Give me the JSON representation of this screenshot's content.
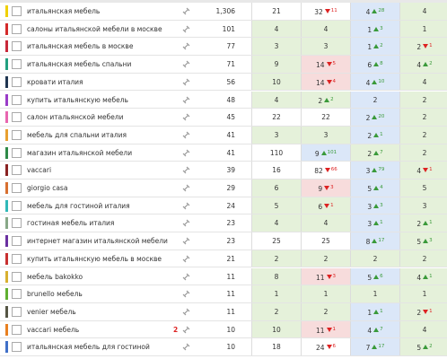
{
  "table": {
    "rows": [
      {
        "color": "#f0d000",
        "keyword": "итальянская мебель",
        "freq": "1,306",
        "cells": [
          {
            "v": 21,
            "tone": "w"
          },
          {
            "v": 32,
            "tone": "w",
            "ch": 11,
            "dir": "down"
          },
          {
            "v": 4,
            "tone": "b",
            "ch": 28,
            "dir": "up"
          },
          {
            "v": 4,
            "tone": "g"
          }
        ]
      },
      {
        "color": "#d42a2a",
        "keyword": "салоны итальянской мебели в москве",
        "freq": 101,
        "cells": [
          {
            "v": 4,
            "tone": "g"
          },
          {
            "v": 4,
            "tone": "g"
          },
          {
            "v": 1,
            "tone": "b",
            "ch": 3,
            "dir": "up"
          },
          {
            "v": 1,
            "tone": "g"
          }
        ]
      },
      {
        "color": "#c8283a",
        "keyword": "итальянская мебель в москве",
        "freq": 77,
        "cells": [
          {
            "v": 3,
            "tone": "g"
          },
          {
            "v": 3,
            "tone": "g"
          },
          {
            "v": 1,
            "tone": "b",
            "ch": 2,
            "dir": "up"
          },
          {
            "v": 2,
            "tone": "g",
            "ch": 1,
            "dir": "down"
          }
        ]
      },
      {
        "color": "#22a080",
        "keyword": "итальянская мебель спальни",
        "freq": 71,
        "cells": [
          {
            "v": 9,
            "tone": "g"
          },
          {
            "v": 14,
            "tone": "r",
            "ch": 5,
            "dir": "down"
          },
          {
            "v": 6,
            "tone": "b",
            "ch": 8,
            "dir": "up"
          },
          {
            "v": 4,
            "tone": "g",
            "ch": 2,
            "dir": "up"
          }
        ]
      },
      {
        "color": "#1f3550",
        "keyword": "кровати италия",
        "freq": 56,
        "cells": [
          {
            "v": 10,
            "tone": "g"
          },
          {
            "v": 14,
            "tone": "r",
            "ch": 4,
            "dir": "down"
          },
          {
            "v": 4,
            "tone": "b",
            "ch": 10,
            "dir": "up"
          },
          {
            "v": 4,
            "tone": "g"
          }
        ]
      },
      {
        "color": "#9a3cc8",
        "keyword": "купить итальянскую мебель",
        "freq": 48,
        "cells": [
          {
            "v": 4,
            "tone": "g"
          },
          {
            "v": 2,
            "tone": "g",
            "ch": 2,
            "dir": "up"
          },
          {
            "v": 2,
            "tone": "b"
          },
          {
            "v": 2,
            "tone": "g"
          }
        ]
      },
      {
        "color": "#e866b0",
        "keyword": "салон итальянской мебели",
        "freq": 45,
        "cells": [
          {
            "v": 22,
            "tone": "w"
          },
          {
            "v": 22,
            "tone": "w"
          },
          {
            "v": 2,
            "tone": "b",
            "ch": 20,
            "dir": "up"
          },
          {
            "v": 2,
            "tone": "g"
          }
        ]
      },
      {
        "color": "#e8a030",
        "keyword": "мебель для спальни италия",
        "freq": 41,
        "cells": [
          {
            "v": 3,
            "tone": "g"
          },
          {
            "v": 3,
            "tone": "g"
          },
          {
            "v": 2,
            "tone": "b",
            "ch": 1,
            "dir": "up"
          },
          {
            "v": 2,
            "tone": "g"
          }
        ]
      },
      {
        "color": "#2e8a48",
        "keyword": "магазин итальянской мебели",
        "freq": 41,
        "cells": [
          {
            "v": 110,
            "tone": "w"
          },
          {
            "v": 9,
            "tone": "b",
            "ch": 101,
            "dir": "up"
          },
          {
            "v": 2,
            "tone": "g",
            "ch": 7,
            "dir": "up"
          },
          {
            "v": 2,
            "tone": "g"
          }
        ]
      },
      {
        "color": "#8a2222",
        "keyword": "vaccari",
        "freq": 39,
        "cells": [
          {
            "v": 16,
            "tone": "w"
          },
          {
            "v": 82,
            "tone": "w",
            "ch": 66,
            "dir": "down"
          },
          {
            "v": 3,
            "tone": "b",
            "ch": 79,
            "dir": "up"
          },
          {
            "v": 4,
            "tone": "g",
            "ch": 1,
            "dir": "down"
          }
        ]
      },
      {
        "color": "#d87030",
        "keyword": "giorgio casa",
        "freq": 29,
        "cells": [
          {
            "v": 6,
            "tone": "g"
          },
          {
            "v": 9,
            "tone": "r",
            "ch": 3,
            "dir": "down"
          },
          {
            "v": 5,
            "tone": "b",
            "ch": 4,
            "dir": "up"
          },
          {
            "v": 5,
            "tone": "g"
          }
        ]
      },
      {
        "color": "#30b8b8",
        "keyword": "мебель для гостиной италия",
        "freq": 24,
        "cells": [
          {
            "v": 5,
            "tone": "g"
          },
          {
            "v": 6,
            "tone": "g",
            "ch": 1,
            "dir": "down"
          },
          {
            "v": 3,
            "tone": "b",
            "ch": 3,
            "dir": "up"
          },
          {
            "v": 3,
            "tone": "g"
          }
        ]
      },
      {
        "color": "#88a888",
        "keyword": "гостиная мебель италия",
        "freq": 23,
        "cells": [
          {
            "v": 4,
            "tone": "g"
          },
          {
            "v": 4,
            "tone": "g"
          },
          {
            "v": 3,
            "tone": "b",
            "ch": 1,
            "dir": "up"
          },
          {
            "v": 2,
            "tone": "g",
            "ch": 1,
            "dir": "up"
          }
        ]
      },
      {
        "color": "#6a30a0",
        "keyword": "интернет магазин итальянской мебели",
        "freq": 23,
        "cells": [
          {
            "v": 25,
            "tone": "w"
          },
          {
            "v": 25,
            "tone": "w"
          },
          {
            "v": 8,
            "tone": "b",
            "ch": 17,
            "dir": "up"
          },
          {
            "v": 5,
            "tone": "g",
            "ch": 3,
            "dir": "up"
          }
        ]
      },
      {
        "color": "#c83030",
        "keyword": "купить итальянскую мебель в москве",
        "freq": 21,
        "cells": [
          {
            "v": 2,
            "tone": "g"
          },
          {
            "v": 2,
            "tone": "g"
          },
          {
            "v": 2,
            "tone": "g"
          },
          {
            "v": 2,
            "tone": "g"
          }
        ]
      },
      {
        "color": "#d8b030",
        "keyword": "мебель bakokko",
        "freq": 11,
        "cells": [
          {
            "v": 8,
            "tone": "g"
          },
          {
            "v": 11,
            "tone": "r",
            "ch": 3,
            "dir": "down"
          },
          {
            "v": 5,
            "tone": "b",
            "ch": 6,
            "dir": "up"
          },
          {
            "v": 4,
            "tone": "g",
            "ch": 1,
            "dir": "up"
          }
        ]
      },
      {
        "color": "#60b030",
        "keyword": "brunello мебель",
        "freq": 11,
        "cells": [
          {
            "v": 1,
            "tone": "g"
          },
          {
            "v": 1,
            "tone": "g"
          },
          {
            "v": 1,
            "tone": "g"
          },
          {
            "v": 1,
            "tone": "g"
          }
        ]
      },
      {
        "color": "#555544",
        "keyword": "venier мебель",
        "freq": 11,
        "cells": [
          {
            "v": 2,
            "tone": "g"
          },
          {
            "v": 2,
            "tone": "g"
          },
          {
            "v": 1,
            "tone": "b",
            "ch": 1,
            "dir": "up"
          },
          {
            "v": 2,
            "tone": "g",
            "ch": 1,
            "dir": "down"
          }
        ]
      },
      {
        "color": "#e88020",
        "keyword": "vaccari мебель",
        "badge": 2,
        "freq": 10,
        "cells": [
          {
            "v": 10,
            "tone": "g"
          },
          {
            "v": 11,
            "tone": "r",
            "ch": 1,
            "dir": "down"
          },
          {
            "v": 4,
            "tone": "b",
            "ch": 7,
            "dir": "up"
          },
          {
            "v": 4,
            "tone": "g"
          }
        ]
      },
      {
        "color": "#4070c8",
        "keyword": "итальянская мебель для гостиной",
        "freq": 10,
        "cells": [
          {
            "v": 18,
            "tone": "w"
          },
          {
            "v": 24,
            "tone": "w",
            "ch": 6,
            "dir": "down"
          },
          {
            "v": 7,
            "tone": "b",
            "ch": 17,
            "dir": "up"
          },
          {
            "v": 5,
            "tone": "g",
            "ch": 2,
            "dir": "up"
          }
        ]
      }
    ]
  }
}
